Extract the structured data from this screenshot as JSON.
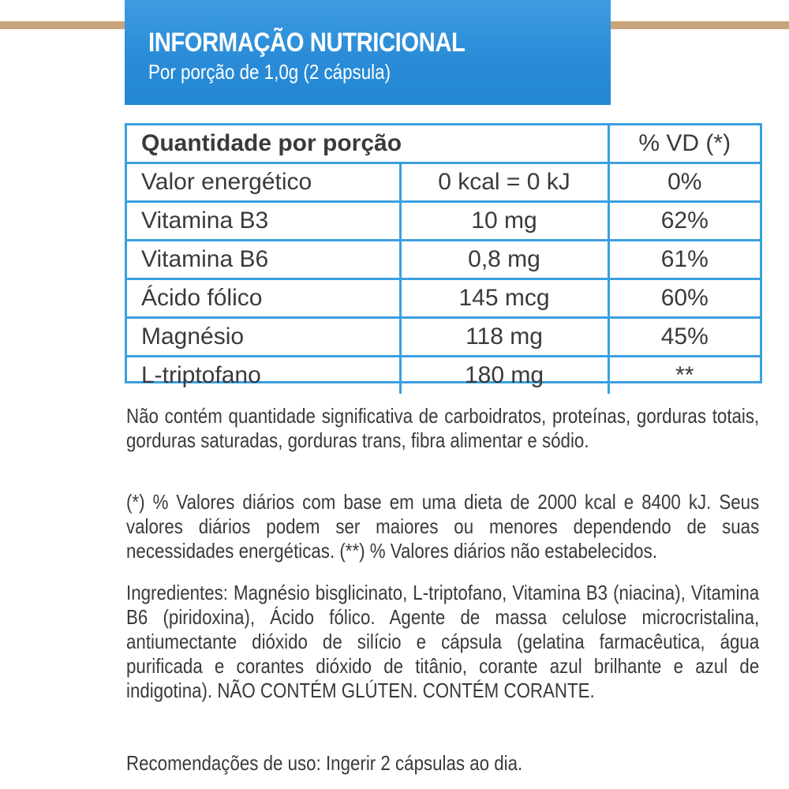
{
  "header": {
    "title": "INFORMAÇÃO NUTRICIONAL",
    "subtitle": "Por porção de 1,0g (2 cápsula)"
  },
  "table": {
    "header_label": "Quantidade por porção",
    "header_vd": "% VD (*)",
    "rows": [
      {
        "name": "Valor energético",
        "amount": "0 kcal = 0 kJ",
        "vd": "0%"
      },
      {
        "name": "Vitamina B3",
        "amount": "10 mg",
        "vd": "62%"
      },
      {
        "name": "Vitamina B6",
        "amount": "0,8 mg",
        "vd": "61%"
      },
      {
        "name": "Ácido fólico",
        "amount": "145 mcg",
        "vd": "60%"
      },
      {
        "name": "Magnésio",
        "amount": "118 mg",
        "vd": "45%"
      },
      {
        "name": "L-triptofano",
        "amount": "180 mg",
        "vd": "**"
      }
    ]
  },
  "notes": {
    "not_contains": "Não contém quantidade significativa de carboidratos, proteínas, gorduras totais, gorduras saturadas, gorduras trans, fibra alimentar e sódio.",
    "daily_values": "(*) % Valores diários com base em uma dieta de 2000 kcal e 8400 kJ. Seus valores diários podem ser maiores ou menores dependendo de suas necessidades energéticas. (**) % Valores diários não estabelecidos.",
    "ingredients": "Ingredientes: Magnésio bisglicinato, L-triptofano, Vitamina B3 (niacina), Vitamina B6 (piridoxina), Ácido fólico. Agente de massa celulose microcristalina, antiumectante dióxido de silício e cápsula (gelatina farmacêutica, água purificada e corantes dióxido de titânio, corante azul brilhante e azul de indigotina). NÃO CONTÉM GLÚTEN. CONTÉM CORANTE.",
    "usage": "Recomendações de uso: Ingerir 2 cápsulas ao dia."
  },
  "colors": {
    "header_bg": "#2a8cd8",
    "table_border": "#3aa0e0",
    "accent_stripe": "#c8a57a",
    "text": "#3a3a3a"
  }
}
